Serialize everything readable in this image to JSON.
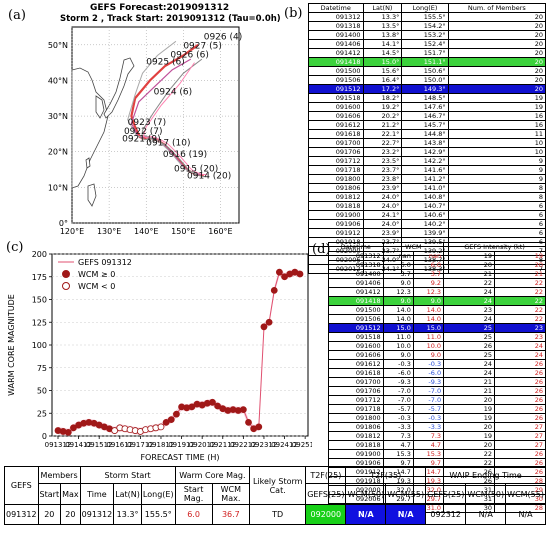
{
  "map": {
    "label": "(a)",
    "title1": "GEFS Forecast:2019091312",
    "title2": "Storm 2 , Track Start: 2019091312 (Tau=0.0h)",
    "lat_ticks": [
      "0°",
      "10°N",
      "20°N",
      "30°N",
      "40°N",
      "50°N"
    ],
    "lon_ticks": [
      "120°E",
      "130°E",
      "140°E",
      "150°E",
      "160°E"
    ],
    "track_labels": [
      {
        "text": "0926 (4)",
        "lon": 155.5,
        "lat": 51.5
      },
      {
        "text": "0927 (5)",
        "lon": 150.0,
        "lat": 49.0
      },
      {
        "text": "0926 (6)",
        "lon": 146.5,
        "lat": 46.5
      },
      {
        "text": "0925 (6)",
        "lon": 140.0,
        "lat": 44.5
      },
      {
        "text": "0924 (6)",
        "lon": 142.0,
        "lat": 36.0
      },
      {
        "text": "0923 (7)",
        "lon": 135.0,
        "lat": 27.5
      },
      {
        "text": "0922 (7)",
        "lon": 134.0,
        "lat": 25.0
      },
      {
        "text": "0921 (9)",
        "lon": 133.5,
        "lat": 22.8
      },
      {
        "text": "0917 (10)",
        "lon": 140.0,
        "lat": 21.8
      },
      {
        "text": "0916 (19)",
        "lon": 144.5,
        "lat": 18.5
      },
      {
        "text": "0915 (20)",
        "lon": 147.5,
        "lat": 14.5
      },
      {
        "text": "0914 (20)",
        "lon": 151.0,
        "lat": 12.5
      }
    ]
  },
  "table_b": {
    "label": "(b)",
    "headers": [
      "Datetime",
      "Lat(N)",
      "Long(E)",
      "Num. of Members"
    ],
    "highlight_green": "091418",
    "highlight_blue": "091512",
    "rows": [
      [
        "091312",
        "13.3°",
        "155.5°",
        "20"
      ],
      [
        "091318",
        "13.5°",
        "154.2°",
        "20"
      ],
      [
        "091400",
        "13.8°",
        "153.2°",
        "20"
      ],
      [
        "091406",
        "14.1°",
        "152.4°",
        "20"
      ],
      [
        "091412",
        "14.5°",
        "151.7°",
        "20"
      ],
      [
        "091418",
        "15.0°",
        "151.1°",
        "20"
      ],
      [
        "091500",
        "15.6°",
        "150.6°",
        "20"
      ],
      [
        "091506",
        "16.4°",
        "150.0°",
        "20"
      ],
      [
        "091512",
        "17.2°",
        "149.3°",
        "20"
      ],
      [
        "091518",
        "18.2°",
        "148.5°",
        "19"
      ],
      [
        "091600",
        "19.2°",
        "147.6°",
        "19"
      ],
      [
        "091606",
        "20.2°",
        "146.7°",
        "16"
      ],
      [
        "091612",
        "21.2°",
        "145.7°",
        "16"
      ],
      [
        "091618",
        "22.1°",
        "144.8°",
        "11"
      ],
      [
        "091700",
        "22.7°",
        "143.8°",
        "10"
      ],
      [
        "091706",
        "23.2°",
        "142.9°",
        "10"
      ],
      [
        "091712",
        "23.5°",
        "142.2°",
        "9"
      ],
      [
        "091718",
        "23.7°",
        "141.6°",
        "9"
      ],
      [
        "091800",
        "23.8°",
        "141.2°",
        "9"
      ],
      [
        "091806",
        "23.9°",
        "141.0°",
        "8"
      ],
      [
        "091812",
        "24.0°",
        "140.8°",
        "8"
      ],
      [
        "091818",
        "24.0°",
        "140.7°",
        "6"
      ],
      [
        "091900",
        "24.1°",
        "140.6°",
        "6"
      ],
      [
        "091906",
        "24.0°",
        "140.2°",
        "6"
      ],
      [
        "091912",
        "23.9°",
        "139.9°",
        "6"
      ],
      [
        "091918",
        "23.7°",
        "139.5°",
        "6"
      ],
      [
        "092000",
        "23.7°",
        "139.2°",
        "7"
      ],
      [
        "092006",
        "24.0°",
        "138.7°",
        "8"
      ],
      [
        "092012",
        "24.1°",
        "138.3°",
        "7"
      ]
    ]
  },
  "chart_data": {
    "type": "line",
    "label": "(c)",
    "ylabel": "WARM CORE MAGNITUDE",
    "xlabel": "FORECAST TIME (H)",
    "ylim": [
      0,
      200
    ],
    "yticks": [
      0,
      25,
      50,
      75,
      100,
      125,
      150,
      175,
      200
    ],
    "xticks": [
      "091312",
      "091412",
      "091512",
      "091612",
      "091712",
      "091812",
      "091912",
      "092012",
      "092112",
      "092212",
      "092312",
      "092412",
      "092512"
    ],
    "legend": {
      "line": "GEFS 091312",
      "pos": "WCM ≥ 0",
      "neg": "WCM < 0"
    },
    "x": [
      "091312",
      "091318",
      "091400",
      "091406",
      "091412",
      "091418",
      "091500",
      "091506",
      "091512",
      "091518",
      "091600",
      "091606",
      "091612",
      "091618",
      "091700",
      "091706",
      "091712",
      "091718",
      "091800",
      "091806",
      "091812",
      "091818",
      "091900",
      "091906",
      "091912",
      "091918",
      "092000",
      "092006",
      "092012",
      "092018",
      "092100",
      "092106",
      "092112",
      "092118",
      "092200",
      "092206",
      "092212",
      "092218",
      "092300",
      "092306",
      "092312",
      "092318",
      "092400",
      "092406",
      "092412",
      "092418",
      "092500",
      "092506"
    ],
    "series": [
      {
        "name": "GEFS 091312",
        "values": [
          6,
          5,
          4,
          9,
          12,
          14,
          15,
          14,
          12,
          10,
          8,
          6,
          9,
          8,
          7,
          6,
          5,
          7,
          8,
          9,
          10,
          15,
          18,
          24,
          32,
          31,
          32,
          35,
          34,
          36,
          37,
          33,
          30,
          28,
          29,
          28,
          29,
          15,
          8,
          10,
          120,
          125,
          160,
          180,
          175,
          178,
          180,
          178
        ]
      }
    ]
  },
  "table_d": {
    "label": "(d)",
    "headers": [
      "Datetime",
      "WCM",
      "GEFS Intensity (kt)"
    ],
    "highlight_green": "091418",
    "highlight_blue": "091512",
    "rows": [
      [
        "091312",
        "nan",
        "nan",
        "19",
        "19"
      ],
      [
        "091318",
        "6.0",
        "6.0",
        "20",
        "20"
      ],
      [
        "091400",
        "3.7",
        "3.7",
        "21",
        "21"
      ],
      [
        "091406",
        "9.0",
        "9.2",
        "22",
        "22"
      ],
      [
        "091412",
        "12.3",
        "12.3",
        "24",
        "22"
      ],
      [
        "091418",
        "9.0",
        "9.0",
        "24",
        "22"
      ],
      [
        "091500",
        "14.0",
        "14.0",
        "23",
        "22"
      ],
      [
        "091506",
        "14.0",
        "14.0",
        "24",
        "22"
      ],
      [
        "091512",
        "15.0",
        "15.0",
        "25",
        "23"
      ],
      [
        "091518",
        "11.0",
        "11.0",
        "25",
        "23"
      ],
      [
        "091600",
        "10.0",
        "10.0",
        "26",
        "24"
      ],
      [
        "091606",
        "9.0",
        "9.0",
        "25",
        "24"
      ],
      [
        "091612",
        "-0.3",
        "-0.3",
        "24",
        "26"
      ],
      [
        "091618",
        "-6.0",
        "-6.0",
        "24",
        "26"
      ],
      [
        "091700",
        "-9.3",
        "-9.3",
        "21",
        "26"
      ],
      [
        "091706",
        "-7.0",
        "-7.0",
        "21",
        "26"
      ],
      [
        "091712",
        "-7.0",
        "-7.0",
        "20",
        "26"
      ],
      [
        "091718",
        "-5.7",
        "-5.7",
        "19",
        "26"
      ],
      [
        "091800",
        "-0.3",
        "-0.3",
        "19",
        "26"
      ],
      [
        "091806",
        "-3.3",
        "-3.3",
        "20",
        "27"
      ],
      [
        "091812",
        "7.3",
        "7.3",
        "19",
        "27"
      ],
      [
        "091818",
        "4.7",
        "4.7",
        "20",
        "27"
      ],
      [
        "091900",
        "15.3",
        "15.3",
        "22",
        "26"
      ],
      [
        "091906",
        "9.7",
        "9.7",
        "22",
        "26"
      ],
      [
        "091912",
        "14.7",
        "14.7",
        "26",
        "26"
      ],
      [
        "091918",
        "19.3",
        "19.3",
        "26",
        "28"
      ],
      [
        "092000",
        "32.0",
        "32.0",
        "31",
        "29"
      ],
      [
        "092006",
        "29.7",
        "29.7",
        "31",
        "30"
      ],
      [
        "092012",
        "31.0",
        "31.0",
        "30",
        "28"
      ]
    ]
  },
  "summary": {
    "col_gefs": "GEFS",
    "col_members": "Members",
    "col_start": "Start",
    "col_max": "Max",
    "col_storm_start": "Storm Start",
    "col_time": "Time",
    "col_lat": "Lat(N)",
    "col_long": "Long(E)",
    "col_wcm": "Warm Core Mag.",
    "col_start_mag": "Start Mag.",
    "col_wcm_max": "WCM Max.",
    "col_likely": "Likely Storm Cat.",
    "col_t2f25": "T2F(25)",
    "col_t2f35": "T2F(35)",
    "col_waip": "WAIP Ending Time",
    "col_gefs25": "GEFS(25)",
    "col_wcm50": "WCM(50)",
    "col_wcm55": "WCM(55)",
    "col_gefs25b": "GEFS(25)",
    "col_wcm50b": "WCM(50)",
    "col_wcm55b": "WCM(55)",
    "v_gefs": "091312",
    "v_start": "20",
    "v_max": "20",
    "v_time": "091312",
    "v_lat": "13.3°",
    "v_long": "155.5°",
    "v_start_mag": "6.0",
    "v_wcm_max": "36.7",
    "v_cat": "TD",
    "v_t2f25_gefs": "092000",
    "v_t2f35_wcm50": "N/A",
    "v_t2f35_wcm55": "N/A",
    "v_waip_gefs": "092312",
    "v_waip_wcm50": "N/A",
    "v_waip_wcm55": "N/A"
  }
}
